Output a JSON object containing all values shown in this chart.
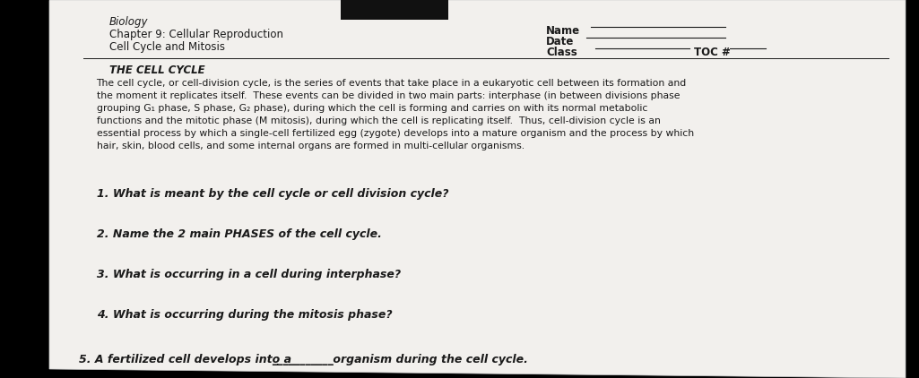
{
  "bg_color": "#000000",
  "paper_color": "#e8e6e3",
  "paper_color2": "#f2f0ed",
  "header_left": [
    "Biology",
    "Chapter 9: Cellular Reproduction",
    "Cell Cycle and Mitosis"
  ],
  "section_title": "THE CELL CYCLE",
  "para_line1": "The cell cycle, or cell-division cycle, is the series of events that take place in a eukaryotic cell between its formation and",
  "para_line2": "the moment it replicates itself.  These events can be divided in two main parts: interphase (in between divisions phase",
  "para_line3": "grouping G₁ phase, S phase, G₂ phase), during which the cell is forming and carries on with its normal metabolic",
  "para_line4": "functions and the mitotic phase (M mitosis), during which the cell is replicating itself.  Thus, cell-division cycle is an",
  "para_line5": "essential process by which a single-cell fertilized egg (zygote) develops into a mature organism and the process by which",
  "para_line6": "hair, skin, blood cells, and some internal organs are formed in multi-cellular organisms.",
  "q1": "1. What is meant by the cell cycle or cell division cycle?",
  "q2": "2. Name the 2 main PHASES of the cell cycle.",
  "q3": "3. What is occurring in a cell during interphase?",
  "q4": "4. What is occurring during the mitosis phase?",
  "q5_before": "5. A fertilized cell develops into a ",
  "q5_after": " organism during the cell cycle.",
  "text_color": "#1a1a1a",
  "font_size_header": 8.5,
  "font_size_body": 7.5,
  "font_size_questions": 9.0
}
